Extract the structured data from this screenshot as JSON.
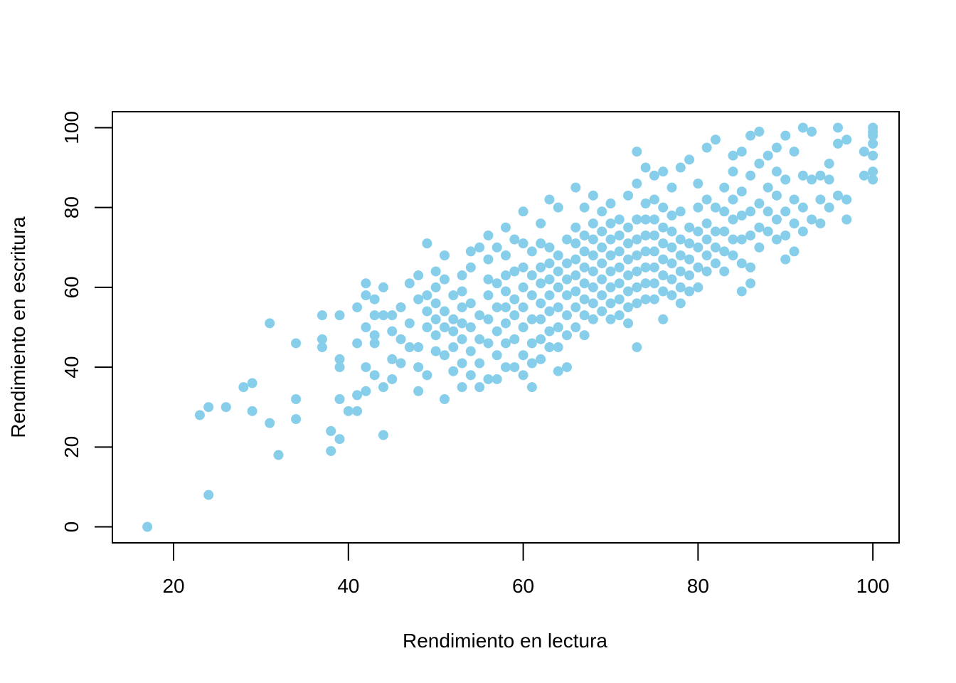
{
  "chart_data": {
    "type": "scatter",
    "title": "",
    "xlabel": "Rendimiento en lectura",
    "ylabel": "Rendimiento en escritura",
    "xlim": [
      13,
      103
    ],
    "ylim": [
      -4,
      104
    ],
    "x_ticks": [
      20,
      40,
      60,
      80,
      100
    ],
    "y_ticks": [
      0,
      20,
      40,
      60,
      80,
      100
    ],
    "x_tick_labels": [
      "20",
      "40",
      "60",
      "80",
      "100"
    ],
    "y_tick_labels": [
      "0",
      "20",
      "40",
      "60",
      "80",
      "100"
    ],
    "grid": false,
    "legend": "none",
    "point_color": "#87CEEB",
    "series": [
      {
        "x": [
          17,
          24,
          23,
          24,
          26,
          28,
          29,
          29,
          31,
          31,
          32,
          34,
          34,
          34,
          37,
          37,
          37,
          38,
          38,
          39,
          39,
          39,
          39,
          39,
          40,
          41,
          41,
          41,
          41,
          42,
          42,
          42,
          42,
          42,
          43,
          43,
          43,
          43,
          43,
          44,
          44,
          44,
          44,
          45,
          45,
          45,
          45,
          46,
          46,
          46,
          47,
          47,
          47,
          48,
          48,
          48,
          48,
          48,
          49,
          49,
          49,
          49,
          49,
          50,
          50,
          50,
          50,
          50,
          50,
          51,
          51,
          51,
          51,
          51,
          51,
          52,
          52,
          52,
          52,
          52,
          53,
          53,
          53,
          53,
          53,
          53,
          53,
          54,
          54,
          54,
          54,
          54,
          54,
          55,
          55,
          55,
          55,
          55,
          56,
          56,
          56,
          56,
          56,
          56,
          56,
          57,
          57,
          57,
          57,
          57,
          57,
          58,
          58,
          58,
          58,
          58,
          58,
          58,
          58,
          59,
          59,
          59,
          59,
          59,
          59,
          60,
          60,
          60,
          60,
          60,
          60,
          60,
          60,
          61,
          61,
          61,
          61,
          61,
          61,
          61,
          62,
          62,
          62,
          62,
          62,
          62,
          62,
          62,
          63,
          63,
          63,
          63,
          63,
          63,
          63,
          63,
          64,
          64,
          64,
          64,
          64,
          64,
          64,
          64,
          65,
          65,
          65,
          65,
          65,
          65,
          65,
          66,
          66,
          66,
          66,
          66,
          66,
          66,
          66,
          67,
          67,
          67,
          67,
          67,
          67,
          67,
          67,
          68,
          68,
          68,
          68,
          68,
          68,
          68,
          68,
          69,
          69,
          69,
          69,
          69,
          69,
          69,
          70,
          70,
          70,
          70,
          70,
          70,
          70,
          70,
          71,
          71,
          71,
          71,
          71,
          71,
          71,
          72,
          72,
          72,
          72,
          72,
          72,
          72,
          72,
          73,
          73,
          73,
          73,
          73,
          73,
          73,
          73,
          73,
          74,
          74,
          74,
          74,
          74,
          74,
          74,
          74,
          75,
          75,
          75,
          75,
          75,
          75,
          75,
          75,
          76,
          76,
          76,
          76,
          76,
          76,
          76,
          76,
          77,
          77,
          77,
          77,
          77,
          77,
          77,
          78,
          78,
          78,
          78,
          78,
          78,
          78,
          79,
          79,
          79,
          79,
          79,
          79,
          80,
          80,
          80,
          80,
          80,
          80,
          81,
          81,
          81,
          81,
          81,
          81,
          82,
          82,
          82,
          82,
          82,
          83,
          83,
          83,
          83,
          83,
          84,
          84,
          84,
          84,
          84,
          84,
          85,
          85,
          85,
          85,
          85,
          85,
          86,
          86,
          86,
          86,
          86,
          86,
          87,
          87,
          87,
          87,
          87,
          88,
          88,
          88,
          88,
          89,
          89,
          89,
          89,
          89,
          90,
          90,
          90,
          90,
          90,
          91,
          91,
          91,
          91,
          92,
          92,
          92,
          92,
          93,
          93,
          93,
          94,
          94,
          94,
          95,
          95,
          95,
          96,
          96,
          96,
          97,
          97,
          97,
          99,
          99,
          100,
          100,
          100,
          100,
          100,
          100,
          100
        ],
        "y": [
          0,
          8,
          28,
          30,
          30,
          35,
          29,
          36,
          26,
          51,
          18,
          27,
          32,
          46,
          45,
          47,
          53,
          19,
          24,
          22,
          32,
          40,
          42,
          53,
          29,
          29,
          33,
          46,
          55,
          34,
          40,
          50,
          58,
          61,
          38,
          46,
          48,
          53,
          57,
          23,
          35,
          53,
          60,
          37,
          42,
          49,
          53,
          41,
          47,
          55,
          45,
          51,
          61,
          34,
          40,
          45,
          57,
          63,
          38,
          50,
          54,
          58,
          71,
          44,
          48,
          52,
          56,
          60,
          64,
          32,
          43,
          50,
          54,
          62,
          68,
          39,
          45,
          49,
          52,
          58,
          35,
          41,
          47,
          51,
          55,
          59,
          63,
          38,
          44,
          50,
          56,
          65,
          69,
          35,
          41,
          47,
          53,
          70,
          37,
          46,
          52,
          58,
          62,
          67,
          73,
          37,
          43,
          49,
          55,
          61,
          70,
          40,
          46,
          51,
          55,
          59,
          63,
          68,
          75,
          40,
          47,
          53,
          57,
          64,
          72,
          38,
          43,
          50,
          55,
          60,
          65,
          71,
          79,
          35,
          41,
          46,
          52,
          58,
          63,
          69,
          42,
          47,
          52,
          56,
          61,
          65,
          71,
          76,
          45,
          49,
          54,
          58,
          62,
          66,
          70,
          82,
          39,
          45,
          50,
          55,
          60,
          64,
          68,
          80,
          40,
          48,
          53,
          58,
          62,
          66,
          72,
          50,
          55,
          59,
          63,
          67,
          71,
          75,
          85,
          48,
          53,
          57,
          61,
          65,
          69,
          73,
          80,
          52,
          56,
          60,
          64,
          68,
          72,
          76,
          83,
          54,
          58,
          62,
          66,
          70,
          74,
          79,
          52,
          56,
          60,
          64,
          68,
          72,
          76,
          81,
          53,
          57,
          61,
          65,
          69,
          73,
          77,
          51,
          55,
          59,
          63,
          67,
          71,
          75,
          83,
          45,
          56,
          60,
          64,
          68,
          72,
          77,
          86,
          94,
          57,
          61,
          65,
          69,
          73,
          77,
          81,
          90,
          57,
          61,
          65,
          69,
          73,
          77,
          82,
          88,
          52,
          59,
          63,
          67,
          71,
          75,
          80,
          89,
          58,
          62,
          66,
          70,
          74,
          78,
          85,
          56,
          60,
          64,
          68,
          72,
          79,
          90,
          59,
          63,
          67,
          71,
          75,
          92,
          60,
          65,
          70,
          74,
          80,
          86,
          64,
          68,
          72,
          76,
          82,
          95,
          66,
          70,
          74,
          80,
          97,
          64,
          69,
          74,
          79,
          85,
          68,
          72,
          77,
          82,
          89,
          93,
          59,
          66,
          72,
          78,
          84,
          94,
          61,
          65,
          73,
          79,
          88,
          98,
          70,
          75,
          81,
          91,
          99,
          74,
          79,
          85,
          93,
          72,
          77,
          83,
          89,
          95,
          67,
          73,
          79,
          87,
          98,
          69,
          76,
          82,
          94,
          74,
          80,
          88,
          100,
          77,
          87,
          99,
          76,
          82,
          88,
          80,
          87,
          91,
          83,
          96,
          100,
          77,
          82,
          97,
          88,
          94,
          87,
          89,
          93,
          96,
          98,
          99,
          100
        ]
      }
    ]
  }
}
